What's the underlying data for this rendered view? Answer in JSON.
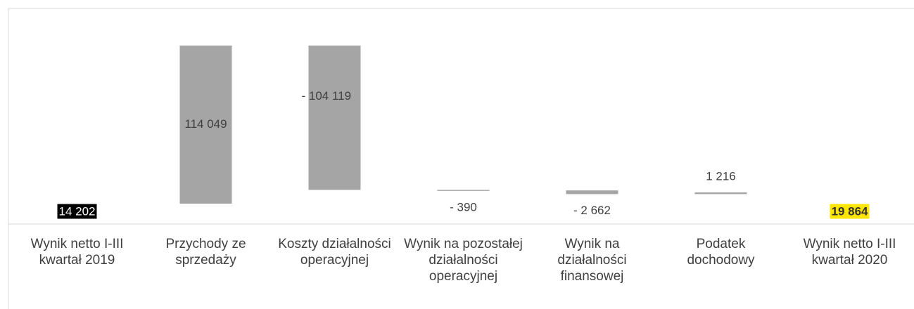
{
  "chart_data": {
    "type": "waterfall",
    "categories": [
      "Wynik netto I-III kwartał 2019",
      "Przychody ze sprzedaży",
      "Koszty działalności operacyjnej",
      "Wynik na pozostałej działalności operacyjnej",
      "Wynik na działalności finansowej",
      "Podatek dochodowy",
      "Wynik netto I-III kwartał 2020"
    ],
    "values": [
      14202,
      114049,
      -104119,
      -390,
      -2662,
      1216,
      19864
    ],
    "value_labels": [
      "14 202",
      "114 049",
      "- 104 119",
      "- 390",
      "- 2 662",
      "1 216",
      "19 864"
    ],
    "colors": [
      "#ffffff",
      "#a5a5a5",
      "#a5a5a5",
      "#a5a5a5",
      "#a5a5a5",
      "#a5a5a5",
      "#ffffff"
    ],
    "ylim": [
      0,
      155000
    ]
  }
}
